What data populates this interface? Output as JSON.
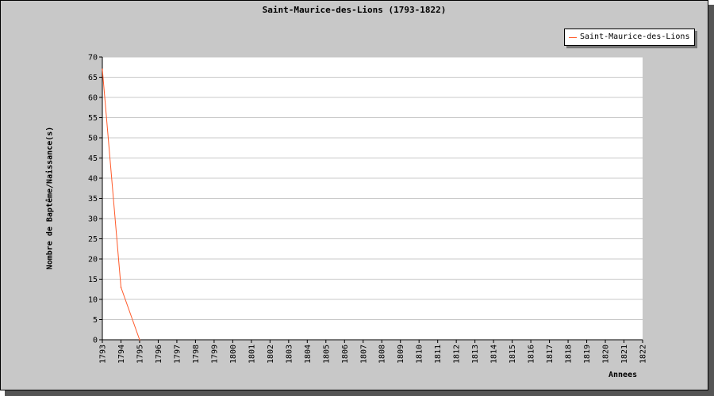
{
  "chart_data": {
    "type": "line",
    "title": "Saint-Maurice-des-Lions (1793-1822)",
    "xlabel": "Annees",
    "ylabel": "Nombre de Baptême/Naissance(s)",
    "x": [
      1793,
      1794,
      1795
    ],
    "x_ticks": [
      "1793",
      "1794",
      "1795",
      "1796",
      "1797",
      "1798",
      "1799",
      "1800",
      "1801",
      "1802",
      "1803",
      "1804",
      "1805",
      "1806",
      "1807",
      "1808",
      "1809",
      "1810",
      "1811",
      "1812",
      "1813",
      "1814",
      "1815",
      "1816",
      "1817",
      "1818",
      "1819",
      "1820",
      "1821",
      "1822"
    ],
    "y_ticks": [
      "0",
      "5",
      "10",
      "15",
      "20",
      "25",
      "30",
      "35",
      "40",
      "45",
      "50",
      "55",
      "60",
      "65",
      "70"
    ],
    "xlim": [
      1793,
      1822
    ],
    "ylim": [
      0,
      70
    ],
    "grid": true,
    "legend_position": "top-right",
    "series": [
      {
        "name": "Saint-Maurice-des-Lions",
        "color": "#ff5a2a",
        "values": [
          67,
          13,
          0
        ]
      }
    ]
  }
}
